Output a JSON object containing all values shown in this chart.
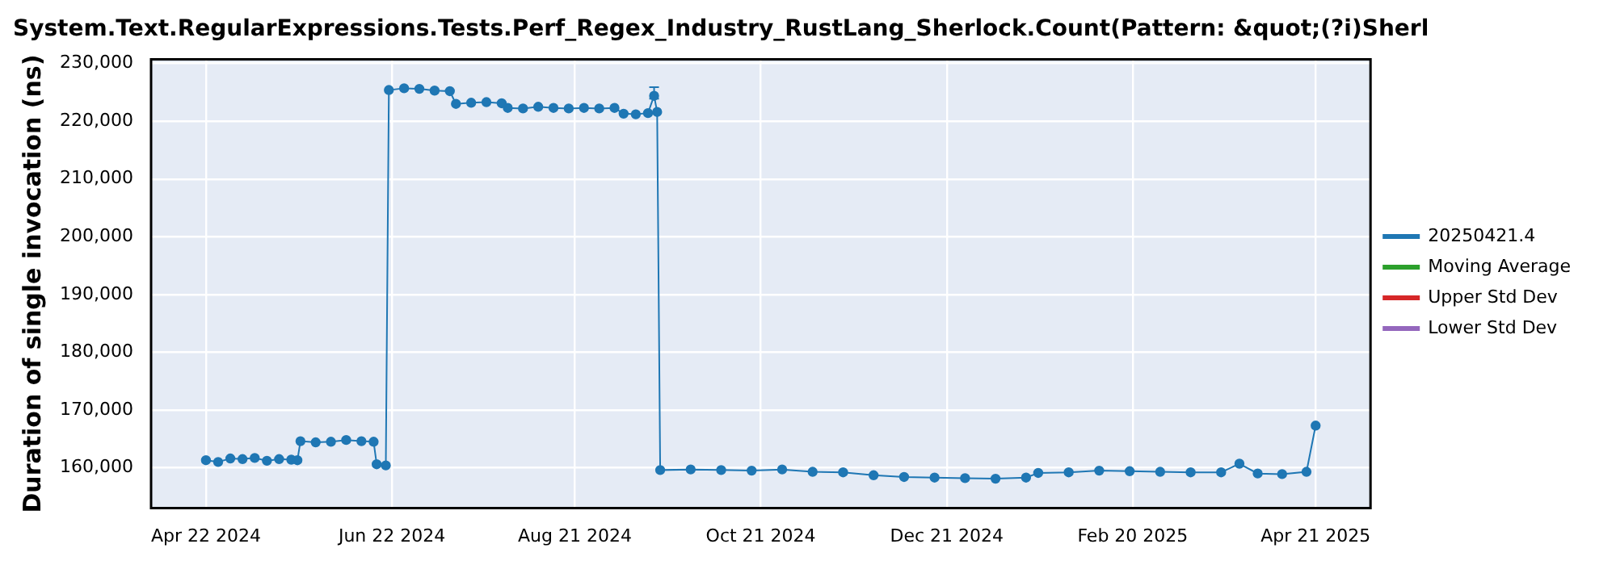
{
  "chart_data": {
    "type": "line",
    "title": "System.Text.RegularExpressions.Tests.Perf_Regex_Industry_RustLang_Sherlock.Count(Pattern: &quot;(?i)Sherl",
    "ylabel": "Duration of single invocation (ns)",
    "grid": true,
    "legend": "right",
    "marker": "circle",
    "line_style": "solid",
    "xlim": [
      "2024-04-04",
      "2025-05-09"
    ],
    "xticks": [
      {
        "value": "2024-04-22",
        "label": "Apr 22 2024"
      },
      {
        "value": "2024-06-22",
        "label": "Jun 22 2024"
      },
      {
        "value": "2024-08-21",
        "label": "Aug 21 2024"
      },
      {
        "value": "2024-10-21",
        "label": "Oct 21 2024"
      },
      {
        "value": "2024-12-21",
        "label": "Dec 21 2024"
      },
      {
        "value": "2025-02-20",
        "label": "Feb 20 2025"
      },
      {
        "value": "2025-04-21",
        "label": "Apr 21 2025"
      }
    ],
    "ylim": [
      153000,
      230700
    ],
    "yticks": [
      {
        "value": 160000,
        "label": "160,000"
      },
      {
        "value": 170000,
        "label": "170,000"
      },
      {
        "value": 180000,
        "label": "180,000"
      },
      {
        "value": 190000,
        "label": "190,000"
      },
      {
        "value": 200000,
        "label": "200,000"
      },
      {
        "value": 210000,
        "label": "210,000"
      },
      {
        "value": 220000,
        "label": "220,000"
      },
      {
        "value": 230000,
        "label": "230,000"
      }
    ],
    "series": [
      {
        "name": "20250421.4",
        "color": "#1f77b4",
        "x": [
          "2024-04-22",
          "2024-04-26",
          "2024-04-30",
          "2024-05-04",
          "2024-05-08",
          "2024-05-12",
          "2024-05-16",
          "2024-05-20",
          "2024-05-22",
          "2024-05-23",
          "2024-05-28",
          "2024-06-02",
          "2024-06-07",
          "2024-06-12",
          "2024-06-16",
          "2024-06-17",
          "2024-06-20",
          "2024-06-21",
          "2024-06-26",
          "2024-07-01",
          "2024-07-06",
          "2024-07-11",
          "2024-07-13",
          "2024-07-18",
          "2024-07-23",
          "2024-07-28",
          "2024-07-30",
          "2024-08-04",
          "2024-08-09",
          "2024-08-14",
          "2024-08-19",
          "2024-08-24",
          "2024-08-29",
          "2024-09-03",
          "2024-09-06",
          "2024-09-10",
          "2024-09-14",
          "2024-09-16",
          "2024-09-17",
          "2024-09-18",
          "2024-09-28",
          "2024-10-08",
          "2024-10-18",
          "2024-10-28",
          "2024-11-07",
          "2024-11-17",
          "2024-11-27",
          "2024-12-07",
          "2024-12-17",
          "2024-12-27",
          "2025-01-06",
          "2025-01-16",
          "2025-01-20",
          "2025-01-30",
          "2025-02-09",
          "2025-02-19",
          "2025-03-01",
          "2025-03-11",
          "2025-03-21",
          "2025-03-27",
          "2025-04-02",
          "2025-04-10",
          "2025-04-18",
          "2025-04-21"
        ],
        "values": [
          161300,
          161000,
          161600,
          161500,
          161700,
          161200,
          161500,
          161400,
          161300,
          164600,
          164400,
          164500,
          164800,
          164600,
          164500,
          160600,
          160400,
          225400,
          225700,
          225600,
          225300,
          225200,
          223000,
          223200,
          223300,
          223100,
          222300,
          222200,
          222500,
          222300,
          222200,
          222300,
          222200,
          222300,
          221300,
          221200,
          221400,
          224400,
          221600,
          159600,
          159700,
          159600,
          159500,
          159700,
          159300,
          159200,
          158700,
          158400,
          158300,
          158200,
          158100,
          158300,
          159100,
          159200,
          159500,
          159400,
          159300,
          159200,
          159200,
          160700,
          159000,
          158900,
          159300,
          167300
        ],
        "errors": [
          null,
          null,
          null,
          null,
          null,
          null,
          null,
          null,
          null,
          null,
          null,
          null,
          null,
          null,
          null,
          null,
          null,
          null,
          null,
          null,
          null,
          null,
          null,
          null,
          null,
          null,
          null,
          null,
          null,
          null,
          null,
          null,
          null,
          null,
          null,
          null,
          null,
          [
            223900,
            225900
          ],
          null,
          null,
          null,
          null,
          null,
          null,
          null,
          null,
          null,
          null,
          null,
          null,
          null,
          null,
          null,
          null,
          null,
          null,
          null,
          null,
          null,
          null,
          null,
          null,
          null,
          null
        ]
      },
      {
        "name": "Moving Average",
        "color": "#2ca02c"
      },
      {
        "name": "Upper Std Dev",
        "color": "#d62728"
      },
      {
        "name": "Lower Std Dev",
        "color": "#9467bd"
      }
    ]
  }
}
